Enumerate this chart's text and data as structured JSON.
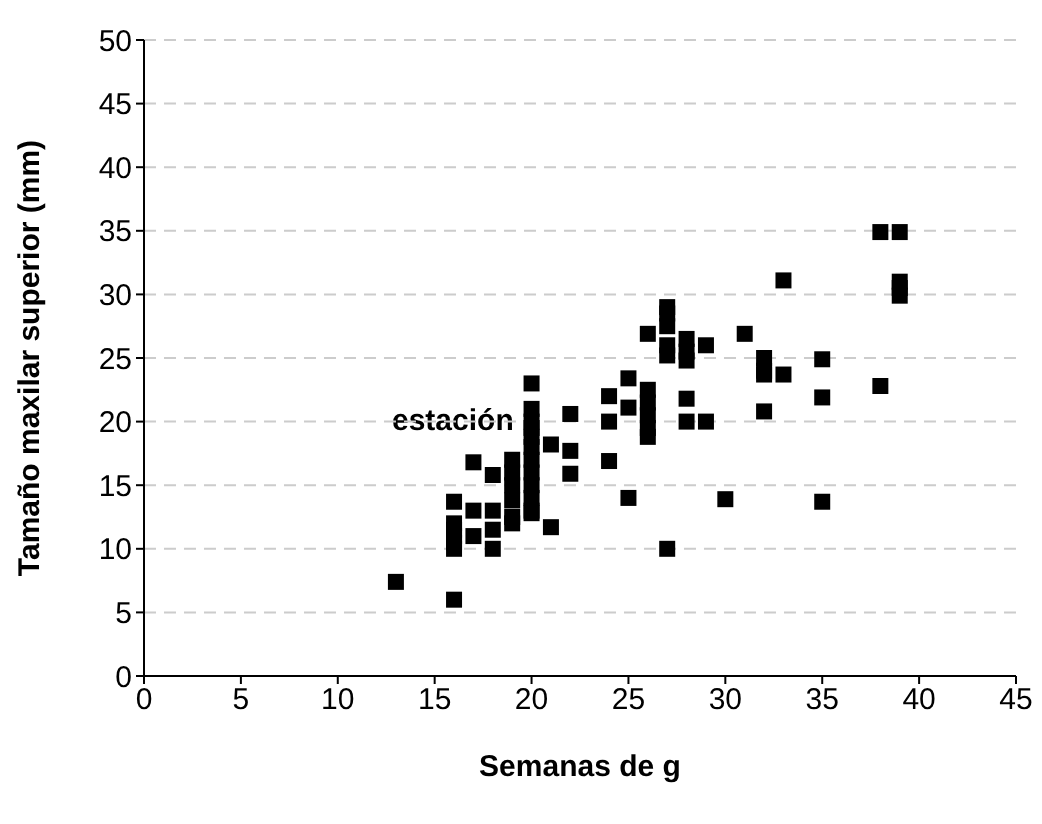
{
  "chart_data": {
    "type": "scatter",
    "xlabel": "Semanas de g",
    "ylabel": "Tamaño maxilar superior (mm)",
    "annotations": [
      "estación"
    ],
    "x": [
      13,
      16,
      16,
      16,
      16,
      16,
      16,
      16,
      17,
      17,
      17,
      18,
      18,
      18,
      18,
      19,
      19,
      19,
      19,
      19,
      19,
      20,
      20,
      20,
      20,
      20,
      20,
      20,
      20,
      20,
      20,
      20,
      20,
      21,
      21,
      22,
      22,
      22,
      24,
      24,
      24,
      25,
      25,
      25,
      26,
      26,
      26,
      26,
      26,
      26,
      27,
      27,
      27,
      27,
      27,
      27,
      28,
      28,
      28,
      28,
      28,
      29,
      29,
      30,
      31,
      32,
      32,
      32,
      32,
      33,
      33,
      35,
      35,
      35,
      38,
      38,
      39,
      39,
      39,
      39
    ],
    "values": [
      7.4,
      6,
      13.7,
      10,
      10.5,
      11,
      11.5,
      12,
      16.8,
      13,
      11,
      15.8,
      13,
      11.5,
      10,
      15,
      16,
      17,
      13.8,
      12,
      12.5,
      23,
      18,
      18.8,
      19.5,
      20,
      21,
      17,
      16,
      15,
      14,
      13,
      12.8,
      18.2,
      11.7,
      17.7,
      15.9,
      20.6,
      22,
      20,
      16.9,
      23.4,
      21.1,
      14,
      26.9,
      22.5,
      21.5,
      20.5,
      19.5,
      18.8,
      29,
      28.5,
      27.5,
      26,
      25.2,
      10,
      26.5,
      25.5,
      24.8,
      21.8,
      20,
      26,
      20,
      13.9,
      26.9,
      25,
      24,
      23.7,
      20.8,
      31.1,
      23.7,
      24.9,
      21.9,
      13.7,
      34.9,
      22.8,
      34.9,
      31,
      30.5,
      29.9
    ],
    "color": "#000000",
    "marker": "square",
    "xlim": [
      0,
      45
    ],
    "xticks": [
      0,
      5,
      10,
      15,
      20,
      25,
      30,
      35,
      40,
      45
    ],
    "ylim": [
      0,
      50
    ],
    "yticks": [
      0,
      5,
      10,
      15,
      20,
      25,
      30,
      35,
      40,
      45,
      50
    ],
    "grid": "y",
    "line_style": "dashed"
  }
}
